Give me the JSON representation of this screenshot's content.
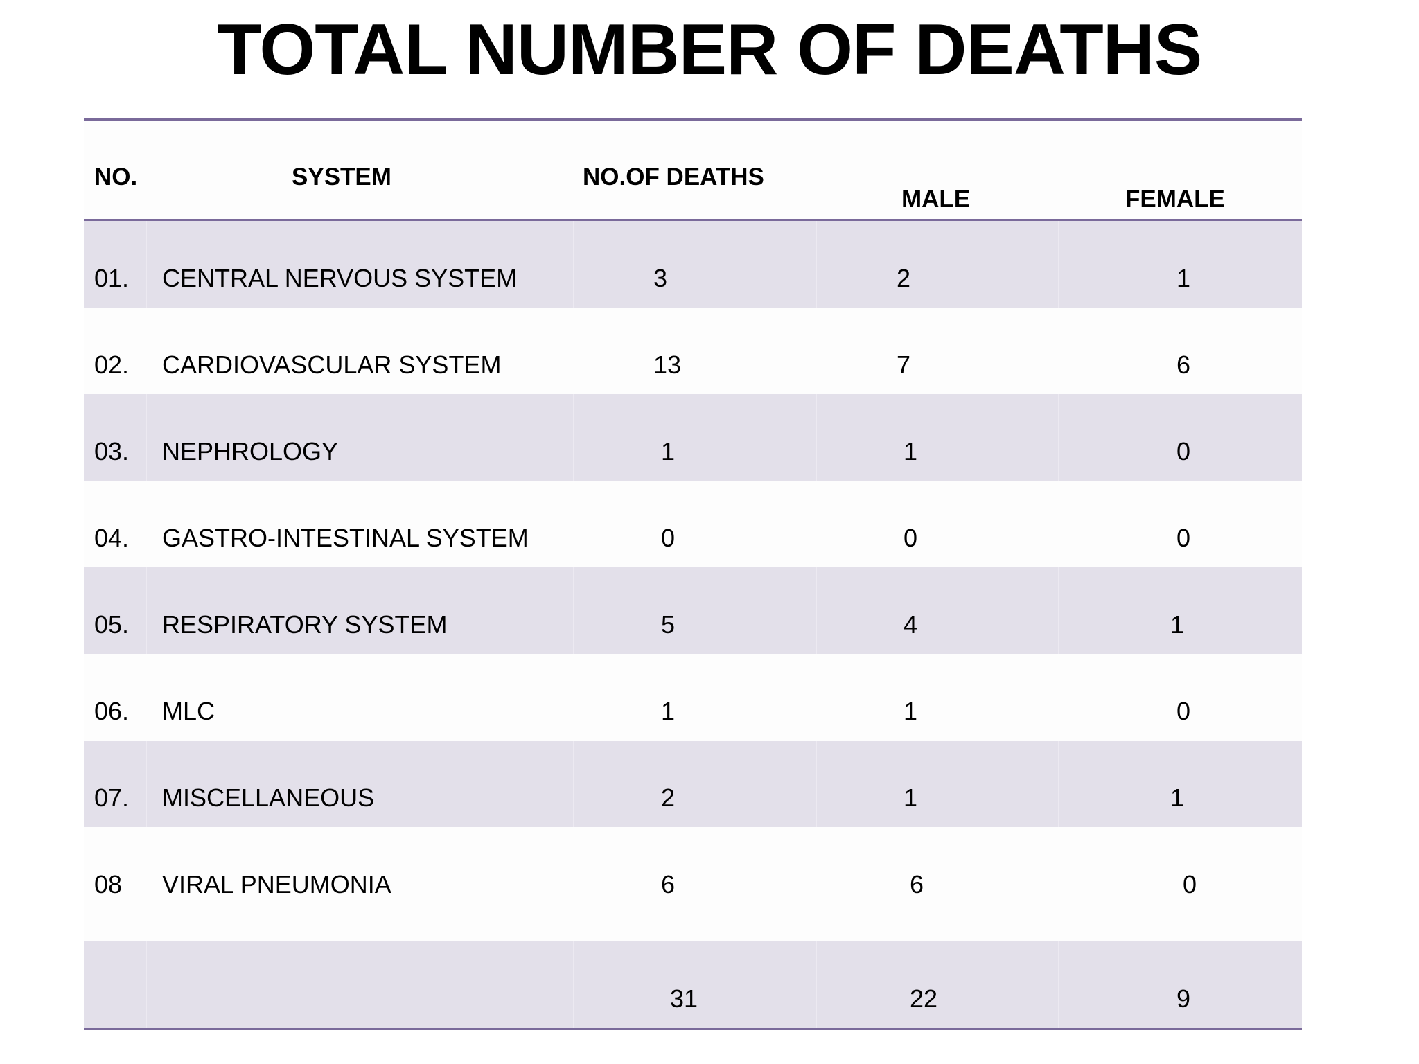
{
  "title": "TOTAL NUMBER OF DEATHS",
  "table": {
    "headers": {
      "no": "NO.",
      "system": "SYSTEM",
      "deaths": "NO.OF DEATHS",
      "male": "MALE",
      "female": "FEMALE"
    },
    "rows": [
      {
        "no": "01.",
        "system": "CENTRAL NERVOUS SYSTEM",
        "deaths": "3",
        "male": "2",
        "female": "1"
      },
      {
        "no": "02.",
        "system": "CARDIOVASCULAR SYSTEM",
        "deaths": "13",
        "male": "7",
        "female": "6"
      },
      {
        "no": "03.",
        "system": "NEPHROLOGY",
        "deaths": "1",
        "male": "1",
        "female": "0"
      },
      {
        "no": "04.",
        "system": "GASTRO-INTESTINAL SYSTEM",
        "deaths": "0",
        "male": "0",
        "female": "0"
      },
      {
        "no": "05.",
        "system": "RESPIRATORY SYSTEM",
        "deaths": "5",
        "male": "4",
        "female": "1"
      },
      {
        "no": "06.",
        "system": "MLC",
        "deaths": "1",
        "male": "1",
        "female": "0"
      },
      {
        "no": "07.",
        "system": "MISCELLANEOUS",
        "deaths": "2",
        "male": "1",
        "female": "1"
      },
      {
        "no": "08",
        "system": "VIRAL PNEUMONIA",
        "deaths": "6",
        "male": "6",
        "female": "0"
      }
    ],
    "totals": {
      "deaths": "31",
      "male": "22",
      "female": "9"
    }
  },
  "colors": {
    "rule": "#7a6a9a",
    "band": "#e3e0ea"
  }
}
